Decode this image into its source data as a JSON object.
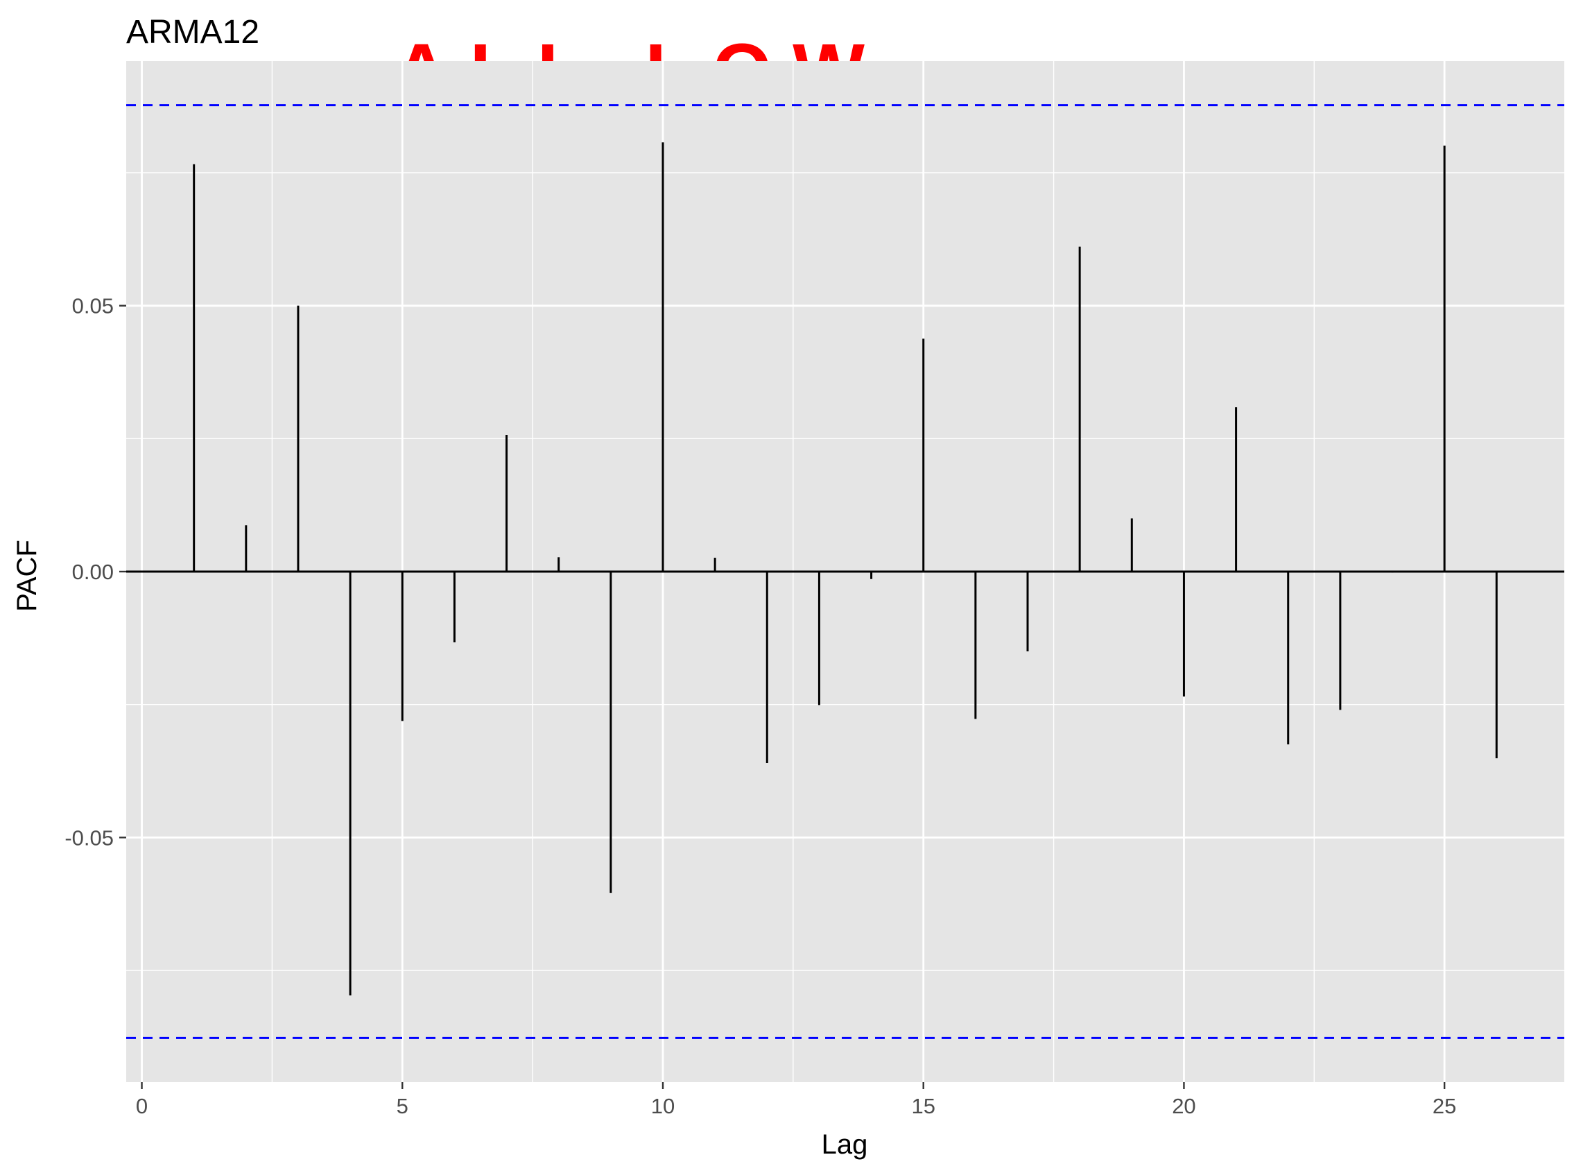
{
  "chart_data": {
    "type": "bar",
    "title": "ARMA12",
    "xlabel": "Lag",
    "ylabel": "PACF",
    "annotation": "ALL LOW",
    "xlim": [
      -0.3,
      27.3
    ],
    "ylim": [
      -0.096,
      0.096
    ],
    "x_ticks": [
      0,
      5,
      10,
      15,
      20,
      25
    ],
    "x_tick_labels": [
      "0",
      "5",
      "10",
      "15",
      "20",
      "25"
    ],
    "y_ticks": [
      -0.05,
      0.0,
      0.05
    ],
    "y_tick_labels": [
      "-0.05",
      "0.00",
      "0.05"
    ],
    "confidence_band": [
      -0.0877,
      0.0877
    ],
    "grid": true,
    "colors": {
      "panel": "#e5e5e5",
      "grid": "#ffffff",
      "bars": "#000000",
      "band": "#0000ff",
      "annotation": "#ff0000"
    },
    "x": [
      1,
      2,
      3,
      4,
      5,
      6,
      7,
      8,
      9,
      10,
      11,
      12,
      13,
      14,
      15,
      16,
      17,
      18,
      19,
      20,
      21,
      22,
      23,
      24,
      25,
      26
    ],
    "values": [
      0.0766,
      0.0087,
      0.05,
      -0.0797,
      -0.0281,
      -0.0133,
      0.0257,
      0.0027,
      -0.0604,
      0.0807,
      0.0026,
      -0.036,
      -0.0251,
      -0.0014,
      0.0438,
      -0.0277,
      -0.015,
      0.0611,
      0.01,
      -0.0235,
      0.0309,
      -0.0325,
      -0.026,
      -0.0002,
      0.0801,
      -0.0351
    ]
  }
}
